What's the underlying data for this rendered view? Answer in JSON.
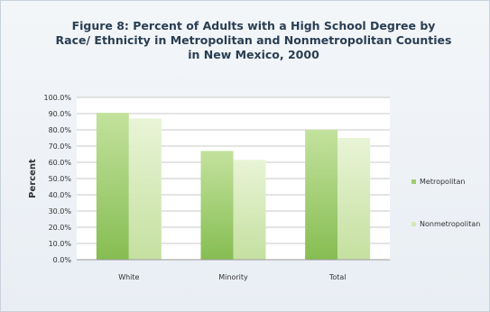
{
  "chart_data": {
    "type": "bar",
    "title": "Figure 8: Percent of Adults with a High School Degree by Race/ Ethnicity in Metropolitan and Nonmetropolitan Counties in New Mexico, 2000",
    "xlabel": "",
    "ylabel": "Percent",
    "ylim": [
      0,
      100
    ],
    "ytick_labels": [
      "0.0%",
      "10.0%",
      "20.0%",
      "30.0%",
      "40.0%",
      "50.0%",
      "60.0%",
      "70.0%",
      "80.0%",
      "90.0%",
      "100.0%"
    ],
    "categories": [
      "White",
      "Minority",
      "Total"
    ],
    "series": [
      {
        "name": "Metropolitan",
        "values": [
          90.5,
          67.0,
          80.0
        ],
        "color": "#9fcd70"
      },
      {
        "name": "Nonmetropolitan",
        "values": [
          87.0,
          61.5,
          75.0
        ],
        "color": "#d4e9b6"
      }
    ],
    "grid": true,
    "legend_position": "right"
  }
}
